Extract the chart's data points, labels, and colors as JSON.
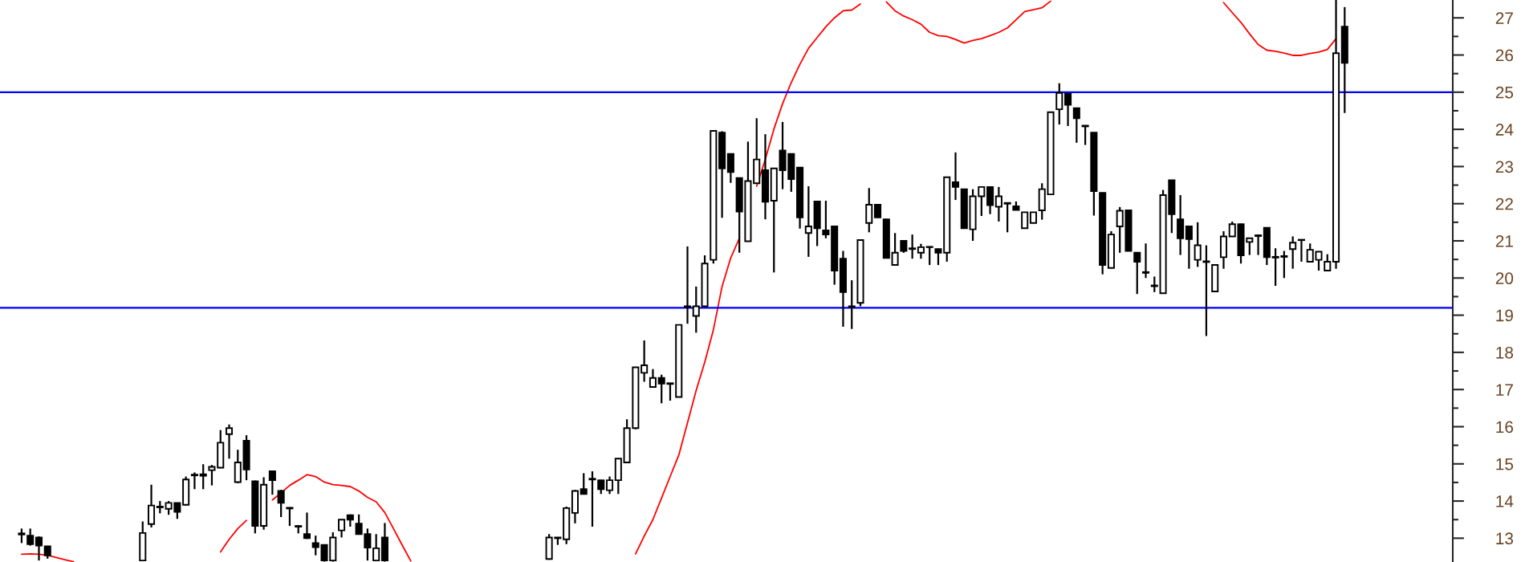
{
  "chart_data": {
    "type": "candlestick",
    "categories": [
      null,
      null,
      null,
      null,
      null,
      null,
      null,
      null,
      null,
      null,
      null,
      null,
      null,
      null,
      null,
      null,
      null,
      null,
      null,
      null,
      null,
      null,
      null,
      null,
      null,
      null,
      null,
      null,
      null,
      null,
      null,
      null,
      null,
      null,
      null,
      null,
      null,
      null,
      null,
      null,
      null,
      null,
      null,
      null,
      null,
      null,
      null,
      null,
      null,
      null,
      null,
      null,
      null,
      null,
      null,
      null,
      null,
      null,
      null,
      null,
      null,
      null,
      null,
      null,
      null,
      null,
      null,
      null,
      null,
      null,
      null,
      null,
      null,
      null,
      null,
      null,
      null,
      null,
      null,
      null,
      null,
      null,
      null,
      null,
      null,
      null,
      null,
      null,
      null,
      null,
      null,
      null,
      null,
      null,
      null,
      null,
      null,
      null,
      null,
      null,
      null,
      null,
      null,
      null,
      null,
      null,
      null,
      null,
      null,
      null,
      null,
      null,
      null,
      null,
      null,
      null,
      null,
      null,
      null,
      null,
      null,
      null,
      null,
      null,
      null,
      null,
      null,
      null,
      null,
      null,
      null,
      null,
      null,
      null,
      null,
      null,
      null,
      null,
      null,
      null,
      null,
      null,
      null,
      null,
      null,
      null,
      null,
      null,
      null,
      null,
      null,
      null,
      null,
      null,
      null,
      null,
      null,
      null,
      null,
      null,
      null,
      null,
      null,
      null,
      null,
      null,
      null,
      null
    ],
    "ohlc": [
      null,
      null,
      [
        13.13,
        13.26,
        12.87,
        13.1
      ],
      [
        13.07,
        13.26,
        12.8,
        12.84
      ],
      [
        13.02,
        13.05,
        12.4,
        12.8
      ],
      [
        12.78,
        12.78,
        12.45,
        12.54
      ],
      null,
      null,
      null,
      null,
      null,
      null,
      null,
      null,
      null,
      null,
      [
        12.4,
        13.45,
        12.38,
        13.14
      ],
      [
        13.38,
        14.44,
        13.29,
        13.88
      ],
      [
        13.85,
        14.0,
        13.67,
        13.83
      ],
      [
        13.79,
        14.0,
        13.63,
        13.95
      ],
      [
        13.95,
        13.96,
        13.52,
        13.71
      ],
      [
        13.9,
        14.66,
        13.88,
        14.58
      ],
      [
        14.71,
        14.77,
        14.32,
        14.69
      ],
      [
        14.72,
        14.99,
        14.32,
        14.68
      ],
      [
        14.83,
        14.97,
        14.42,
        14.92
      ],
      [
        14.9,
        15.91,
        14.88,
        15.57
      ],
      [
        15.8,
        16.06,
        15.14,
        15.96
      ],
      [
        14.51,
        15.38,
        14.48,
        15.04
      ],
      [
        15.62,
        15.77,
        14.56,
        14.85
      ],
      [
        14.53,
        14.55,
        13.13,
        13.33
      ],
      [
        13.33,
        14.64,
        13.23,
        14.44
      ],
      [
        14.8,
        14.82,
        14.17,
        14.56
      ],
      [
        14.27,
        14.3,
        13.57,
        13.95
      ],
      [
        13.82,
        13.83,
        13.33,
        13.8
      ],
      [
        13.33,
        13.34,
        13.13,
        13.31
      ],
      [
        13.11,
        13.69,
        12.98,
        13.0
      ],
      [
        12.87,
        13.07,
        12.54,
        12.76
      ],
      [
        12.82,
        12.82,
        12.37,
        12.4
      ],
      [
        12.4,
        13.16,
        12.37,
        13.02
      ],
      [
        13.21,
        13.5,
        13.02,
        13.5
      ],
      [
        13.62,
        13.64,
        13.31,
        13.5
      ],
      [
        13.39,
        13.64,
        13.1,
        13.11
      ],
      [
        13.11,
        13.26,
        12.4,
        12.75
      ],
      [
        12.4,
        13.11,
        12.38,
        12.73
      ],
      [
        13.02,
        13.41,
        12.37,
        12.4
      ],
      null,
      null,
      null,
      null,
      null,
      null,
      null,
      null,
      null,
      null,
      null,
      null,
      null,
      null,
      null,
      null,
      null,
      null,
      [
        12.44,
        13.11,
        12.42,
        13.02
      ],
      [
        13.02,
        13.03,
        12.82,
        13.0
      ],
      [
        12.97,
        13.85,
        12.84,
        13.81
      ],
      [
        13.68,
        14.3,
        13.4,
        14.27
      ],
      [
        14.32,
        14.75,
        14.18,
        14.19
      ],
      [
        14.58,
        14.8,
        13.31,
        14.6
      ],
      [
        14.56,
        14.57,
        14.19,
        14.32
      ],
      [
        14.29,
        14.66,
        14.19,
        14.56
      ],
      [
        14.56,
        15.15,
        14.19,
        15.14
      ],
      [
        15.04,
        16.2,
        15.03,
        15.96
      ],
      [
        15.96,
        17.61,
        15.93,
        17.6
      ],
      [
        17.45,
        18.32,
        17.21,
        17.65
      ],
      [
        17.07,
        17.55,
        17.07,
        17.31
      ],
      [
        17.31,
        17.4,
        16.63,
        17.16
      ],
      [
        17.17,
        17.17,
        16.7,
        17.15
      ],
      [
        16.8,
        18.75,
        16.79,
        18.74
      ],
      [
        19.24,
        20.85,
        18.77,
        19.22
      ],
      [
        18.98,
        19.77,
        18.53,
        19.24
      ],
      [
        19.24,
        20.61,
        19.22,
        20.39
      ],
      [
        20.49,
        23.97,
        20.39,
        23.96
      ],
      [
        23.91,
        23.95,
        21.62,
        22.95
      ],
      [
        23.34,
        23.35,
        22.56,
        22.85
      ],
      [
        22.69,
        22.7,
        20.68,
        21.79
      ],
      [
        20.99,
        23.67,
        20.98,
        22.61
      ],
      [
        22.55,
        24.3,
        22.54,
        23.19
      ],
      [
        22.9,
        23.87,
        21.58,
        22.05
      ],
      [
        22.08,
        22.96,
        20.15,
        22.95
      ],
      [
        23.43,
        24.2,
        22.39,
        22.9
      ],
      [
        23.34,
        23.35,
        22.32,
        22.66
      ],
      [
        22.97,
        22.98,
        21.33,
        21.63
      ],
      [
        21.21,
        22.47,
        20.57,
        21.39
      ],
      [
        22.06,
        22.07,
        20.86,
        21.34
      ],
      [
        21.28,
        22.08,
        21.07,
        21.17
      ],
      [
        21.39,
        21.4,
        19.82,
        20.2
      ],
      [
        20.52,
        20.73,
        18.69,
        19.62
      ],
      [
        19.24,
        19.94,
        18.63,
        19.22
      ],
      [
        19.33,
        21.03,
        19.24,
        21.02
      ],
      [
        21.48,
        22.42,
        21.23,
        21.97
      ],
      [
        21.97,
        21.98,
        21.62,
        21.63
      ],
      [
        21.58,
        21.59,
        20.53,
        20.54
      ],
      [
        20.35,
        21.21,
        20.35,
        20.68
      ],
      [
        21.0,
        21.01,
        20.68,
        20.73
      ],
      [
        20.8,
        21.17,
        20.52,
        20.78
      ],
      [
        20.68,
        20.92,
        20.52,
        20.83
      ],
      [
        20.84,
        20.85,
        20.35,
        20.83
      ],
      [
        20.78,
        20.79,
        20.35,
        20.68
      ],
      [
        20.68,
        22.72,
        20.44,
        22.71
      ],
      [
        22.58,
        23.38,
        22.1,
        22.45
      ],
      [
        22.39,
        22.4,
        21.33,
        21.34
      ],
      [
        21.31,
        22.39,
        21.0,
        22.2
      ],
      [
        22.2,
        22.46,
        21.67,
        22.45
      ],
      [
        22.45,
        22.46,
        21.72,
        21.96
      ],
      [
        21.92,
        22.45,
        21.52,
        22.2
      ],
      [
        22.02,
        22.03,
        21.23,
        22.0
      ],
      [
        21.93,
        22.06,
        21.82,
        21.83
      ],
      [
        21.34,
        21.78,
        21.33,
        21.77
      ],
      [
        21.48,
        21.78,
        21.47,
        21.77
      ],
      [
        21.82,
        22.55,
        21.57,
        22.39
      ],
      [
        22.25,
        24.47,
        22.24,
        24.46
      ],
      [
        24.54,
        25.24,
        24.13,
        24.98
      ],
      [
        24.96,
        24.97,
        24.09,
        24.66
      ],
      [
        24.57,
        24.58,
        23.64,
        24.3
      ],
      [
        24.1,
        24.11,
        23.58,
        24.08
      ],
      [
        23.91,
        23.92,
        21.68,
        22.34
      ],
      [
        22.29,
        22.3,
        20.1,
        20.35
      ],
      [
        20.27,
        21.26,
        20.26,
        21.17
      ],
      [
        21.39,
        21.91,
        20.68,
        21.81
      ],
      [
        21.82,
        21.83,
        20.72,
        20.73
      ],
      [
        20.68,
        20.69,
        19.57,
        20.44
      ],
      [
        20.16,
        20.93,
        20.0,
        20.14
      ],
      [
        19.8,
        20.04,
        19.62,
        19.78
      ],
      [
        19.59,
        22.37,
        19.58,
        22.23
      ],
      [
        22.63,
        22.64,
        21.21,
        21.72
      ],
      [
        21.58,
        22.23,
        20.62,
        21.07
      ],
      [
        21.39,
        21.4,
        20.25,
        21.05
      ],
      [
        20.49,
        21.5,
        20.3,
        20.88
      ],
      [
        20.45,
        20.88,
        18.44,
        20.43
      ],
      [
        19.64,
        20.36,
        19.63,
        20.35
      ],
      [
        20.56,
        21.26,
        20.25,
        21.12
      ],
      [
        21.12,
        21.52,
        21.11,
        21.45
      ],
      [
        21.45,
        21.46,
        20.39,
        20.61
      ],
      [
        20.97,
        21.08,
        20.62,
        21.07
      ],
      [
        21.15,
        21.17,
        20.62,
        21.13
      ],
      [
        21.35,
        21.36,
        20.35,
        20.56
      ],
      [
        20.57,
        20.8,
        19.79,
        20.55
      ],
      [
        20.59,
        20.73,
        20.0,
        20.57
      ],
      [
        20.78,
        21.12,
        20.25,
        20.95
      ],
      [
        21.03,
        21.03,
        20.44,
        21.02
      ],
      [
        20.44,
        20.93,
        20.43,
        20.76
      ],
      [
        20.49,
        20.72,
        20.2,
        20.71
      ],
      [
        20.2,
        20.64,
        20.19,
        20.44
      ],
      [
        20.44,
        27.48,
        20.25,
        26.05
      ],
      [
        26.76,
        27.29,
        24.44,
        25.79
      ],
      null,
      null,
      null,
      null,
      null,
      null,
      null,
      null,
      null,
      null,
      null,
      null
    ],
    "series": [
      {
        "type": "line",
        "color": "#ff0000",
        "values": [
          null,
          null,
          12.57,
          12.58,
          12.57,
          12.54,
          12.48,
          12.42,
          12.37,
          null,
          null,
          null,
          null,
          null,
          null,
          null,
          null,
          null,
          null,
          null,
          null,
          null,
          null,
          null,
          null,
          12.63,
          12.97,
          13.26,
          13.48,
          null,
          null,
          14.03,
          14.22,
          14.42,
          14.56,
          14.71,
          14.66,
          14.51,
          14.44,
          14.42,
          14.39,
          14.27,
          14.1,
          13.98,
          13.69,
          13.26,
          12.82,
          12.39,
          null,
          null,
          null,
          null,
          null,
          null,
          null,
          null,
          null,
          null,
          null,
          null,
          null,
          null,
          null,
          null,
          null,
          null,
          null,
          null,
          null,
          null,
          null,
          null,
          null,
          12.58,
          13.06,
          13.5,
          14.08,
          14.66,
          15.24,
          16.1,
          16.97,
          17.74,
          18.61,
          19.77,
          20.54,
          21.07,
          null,
          22.47,
          23.19,
          24.01,
          24.69,
          25.26,
          25.75,
          26.18,
          26.47,
          26.76,
          27.0,
          27.19,
          27.21,
          27.37,
          null,
          null,
          27.43,
          27.19,
          27.05,
          26.95,
          26.83,
          26.61,
          26.52,
          26.5,
          26.42,
          26.32,
          26.39,
          26.44,
          26.52,
          26.61,
          26.73,
          26.95,
          27.17,
          27.22,
          27.27,
          27.45,
          null,
          null,
          null,
          null,
          null,
          null,
          null,
          null,
          null,
          null,
          null,
          null,
          null,
          null,
          null,
          null,
          null,
          null,
          null,
          27.41,
          27.14,
          26.88,
          26.57,
          26.28,
          26.13,
          26.1,
          26.05,
          25.99,
          25.99,
          26.04,
          26.08,
          26.15,
          26.44,
          null,
          null,
          null,
          null,
          null,
          null,
          null,
          null,
          null,
          null,
          null,
          null,
          null
        ]
      }
    ],
    "ref_lines": [
      {
        "axis": "y",
        "value": 25,
        "color": "#0000ff"
      },
      {
        "axis": "y",
        "value": 19.2,
        "color": "#0000ff"
      }
    ],
    "ylim": [
      12.36,
      27.48
    ],
    "yticks": [
      13,
      {
        "value": 13.5,
        "label": null
      },
      14,
      {
        "value": 14.5,
        "label": null
      },
      15,
      {
        "value": 15.5,
        "label": null
      },
      16,
      {
        "value": 16.5,
        "label": null
      },
      17,
      {
        "value": 17.5,
        "label": null
      },
      18,
      {
        "value": 18.5,
        "label": null
      },
      19,
      {
        "value": 19.5,
        "label": null
      },
      20,
      {
        "value": 20.5,
        "label": null
      },
      21,
      {
        "value": 21.5,
        "label": null
      },
      22,
      {
        "value": 22.5,
        "label": null
      },
      23,
      {
        "value": 23.5,
        "label": null
      },
      24,
      {
        "value": 24.5,
        "label": null
      },
      25,
      {
        "value": 25.5,
        "label": null
      },
      26,
      {
        "value": 26.5,
        "label": null
      },
      27
    ],
    "tick_labels": "y",
    "grid": false
  }
}
